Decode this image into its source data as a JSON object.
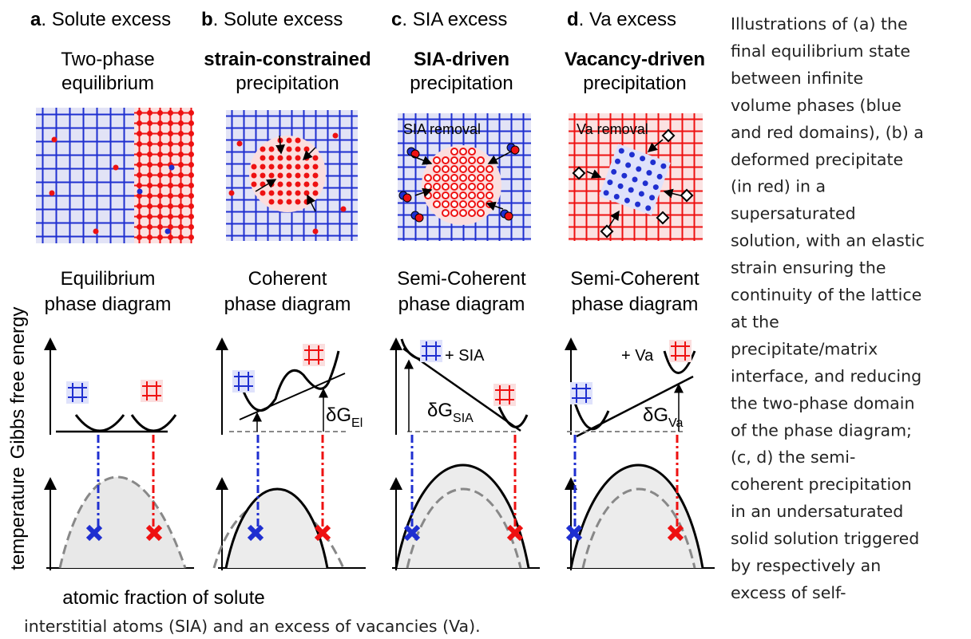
{
  "panels": [
    {
      "letter": "a",
      "heading": ". Solute excess",
      "title": [
        "Two-phase",
        "equilibrium"
      ],
      "diagram_title": [
        "Equilibrium",
        "phase diagram"
      ]
    },
    {
      "letter": "b",
      "heading": ". Solute excess",
      "title": [
        "strain-constrained",
        "precipitation"
      ],
      "diagram_title": [
        "Coherent",
        "phase diagram"
      ],
      "delta_label": "δG",
      "delta_sub": "El"
    },
    {
      "letter": "c",
      "heading": ". SIA excess",
      "title": [
        "SIA-driven",
        "precipitation"
      ],
      "annotation": "SIA removal",
      "diagram_title": [
        "Semi-Coherent",
        "phase diagram"
      ],
      "defect_label": "+ SIA",
      "delta_label": "δG",
      "delta_sub": "SIA"
    },
    {
      "letter": "d",
      "heading": ". Va excess",
      "title": [
        "Vacancy-driven",
        "precipitation"
      ],
      "annotation": "Va removal",
      "diagram_title": [
        "Semi-Coherent",
        "phase diagram"
      ],
      "defect_label": "+ Va",
      "delta_label": "δG",
      "delta_sub": "Va"
    }
  ],
  "axes": {
    "energy": "Gibbs free energy",
    "temperature": "temperature",
    "x": "atomic fraction of solute"
  },
  "caption": [
    "Illustrations of (a) the",
    "final equilibrium state",
    "between infinite",
    "volume phases (blue",
    "and red domains), (b) a",
    "deformed precipitate",
    "(in red) in a",
    "supersaturated",
    "solution, with an elastic",
    "strain ensuring the",
    "continuity of the lattice",
    "at the",
    "precipitate/matrix",
    "interface, and reducing",
    "the two-phase domain",
    "of the phase diagram;",
    "(c, d) the semi-",
    "coherent precipitation",
    "in an undersaturated",
    "solid solution triggered",
    "by respectively an",
    "excess of self-",
    "interstitial atoms (SIA) and an excess of vacancies (Va)."
  ]
}
